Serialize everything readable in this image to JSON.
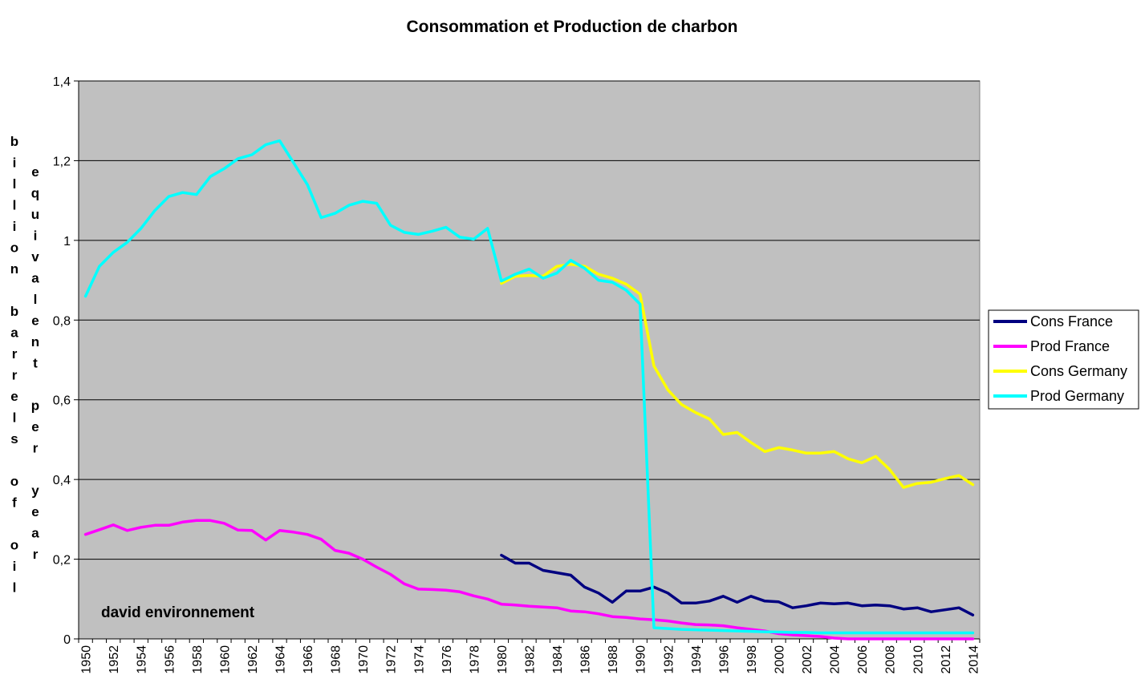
{
  "chart_data": {
    "type": "line",
    "title": "Consommation et Production de charbon",
    "ylabel_lines": [
      "billion barrels of oil",
      "equivalent per year"
    ],
    "xlabel": "",
    "annotation": "david environnement",
    "ylim": [
      0,
      1.4
    ],
    "yticks": [
      0,
      0.2,
      0.4,
      0.6,
      0.8,
      1,
      1.2,
      1.4
    ],
    "ytick_labels": [
      "0",
      "0,2",
      "0,4",
      "0,6",
      "0,8",
      "1",
      "1,2",
      "1,4"
    ],
    "xrange": [
      1950,
      2014
    ],
    "xtick_labels": [
      "1950",
      "1952",
      "1954",
      "1956",
      "1958",
      "1960",
      "1962",
      "1964",
      "1966",
      "1968",
      "1970",
      "1972",
      "1974",
      "1976",
      "1978",
      "1980",
      "1982",
      "1984",
      "1986",
      "1988",
      "1990",
      "1992",
      "1994",
      "1996",
      "1998",
      "2000",
      "2002",
      "2004",
      "2006",
      "2008",
      "2010",
      "2012",
      "2014"
    ],
    "grid": true,
    "legend_position": "right",
    "colors": {
      "plot_bg": "#c0c0c0",
      "grid": "#000000",
      "cons_france": "#000080",
      "prod_france": "#ff00ff",
      "cons_germany": "#ffff00",
      "prod_germany": "#00ffff"
    },
    "series": [
      {
        "name": "Cons France",
        "color_key": "cons_france",
        "start": 1980,
        "values": [
          0.21,
          0.19,
          0.19,
          0.172,
          0.166,
          0.16,
          0.13,
          0.115,
          0.092,
          0.12,
          0.12,
          0.13,
          0.115,
          0.09,
          0.09,
          0.095,
          0.107,
          0.092,
          0.107,
          0.095,
          0.093,
          0.078,
          0.083,
          0.09,
          0.088,
          0.09,
          0.083,
          0.085,
          0.083,
          0.075,
          0.078,
          0.068,
          0.073,
          0.078,
          0.06
        ]
      },
      {
        "name": "Prod France",
        "color_key": "prod_france",
        "start": 1950,
        "values": [
          0.262,
          0.274,
          0.286,
          0.272,
          0.28,
          0.285,
          0.285,
          0.293,
          0.297,
          0.297,
          0.29,
          0.273,
          0.272,
          0.248,
          0.272,
          0.268,
          0.262,
          0.25,
          0.222,
          0.215,
          0.2,
          0.18,
          0.162,
          0.138,
          0.125,
          0.124,
          0.122,
          0.118,
          0.108,
          0.1,
          0.087,
          0.085,
          0.082,
          0.08,
          0.078,
          0.07,
          0.068,
          0.063,
          0.056,
          0.054,
          0.05,
          0.048,
          0.045,
          0.04,
          0.036,
          0.035,
          0.033,
          0.028,
          0.024,
          0.02,
          0.013,
          0.01,
          0.008,
          0.006,
          0.002,
          0,
          0,
          0,
          0,
          0,
          0,
          0,
          0,
          0,
          0
        ]
      },
      {
        "name": "Cons Germany",
        "color_key": "cons_germany",
        "start": 1980,
        "values": [
          0.892,
          0.91,
          0.912,
          0.91,
          0.935,
          0.94,
          0.935,
          0.915,
          0.905,
          0.89,
          0.865,
          0.685,
          0.625,
          0.588,
          0.568,
          0.552,
          0.513,
          0.518,
          0.493,
          0.47,
          0.48,
          0.474,
          0.466,
          0.466,
          0.47,
          0.452,
          0.442,
          0.458,
          0.425,
          0.38,
          0.39,
          0.393,
          0.402,
          0.41,
          0.387
        ]
      },
      {
        "name": "Prod Germany",
        "color_key": "prod_germany",
        "start": 1950,
        "values": [
          0.86,
          0.935,
          0.97,
          0.995,
          1.03,
          1.075,
          1.11,
          1.12,
          1.115,
          1.16,
          1.18,
          1.205,
          1.215,
          1.24,
          1.25,
          1.195,
          1.14,
          1.057,
          1.068,
          1.088,
          1.098,
          1.093,
          1.038,
          1.02,
          1.015,
          1.023,
          1.033,
          1.008,
          1.003,
          1.03,
          0.898,
          0.915,
          0.928,
          0.905,
          0.918,
          0.95,
          0.93,
          0.9,
          0.895,
          0.875,
          0.84,
          0.028,
          0.026,
          0.024,
          0.023,
          0.022,
          0.021,
          0.02,
          0.019,
          0.018,
          0.017,
          0.016,
          0.016,
          0.015,
          0.015,
          0.015,
          0.015,
          0.015,
          0.015,
          0.015,
          0.015,
          0.015,
          0.015,
          0.015,
          0.015
        ]
      }
    ]
  }
}
